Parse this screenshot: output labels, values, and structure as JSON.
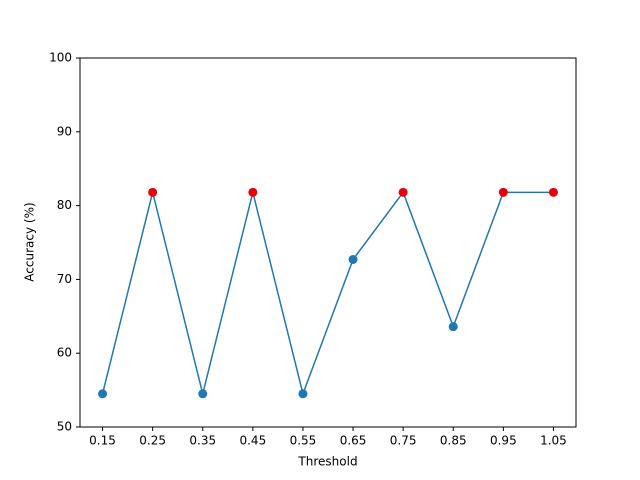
{
  "chart_data": {
    "type": "line",
    "xlabel": "Threshold",
    "ylabel": "Accuracy (%)",
    "x": [
      0.15,
      0.25,
      0.35,
      0.45,
      0.55,
      0.65,
      0.75,
      0.85,
      0.95,
      1.05
    ],
    "series": [
      {
        "color": "#1f77b4",
        "values": [
          54.5,
          81.8,
          54.5,
          81.8,
          54.5,
          72.7,
          81.8,
          63.6,
          81.8,
          81.8
        ]
      }
    ],
    "max_marker_color": "#e8000b",
    "xlim": [
      0.105,
      1.095
    ],
    "xticks": [
      0.15,
      0.25,
      0.35,
      0.45,
      0.55,
      0.65,
      0.75,
      0.85,
      0.95,
      1.05
    ],
    "ylim": [
      50,
      100
    ],
    "yticks": [
      50,
      60,
      70,
      80,
      90,
      100
    ]
  }
}
